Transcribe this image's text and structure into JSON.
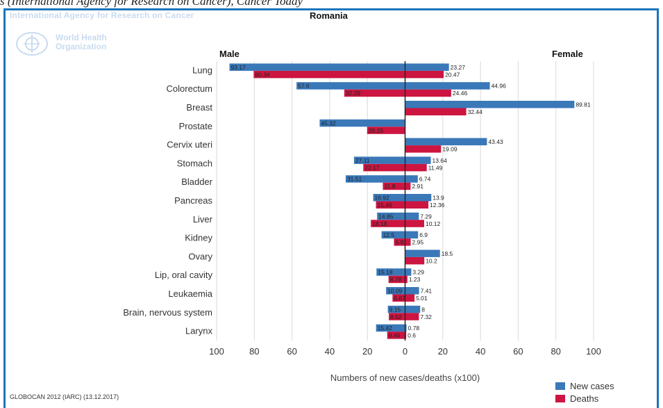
{
  "caption": "s (International Agency for Research on Cancer), Cancer Today",
  "header": {
    "iarc_banner": "International Agency for Research on Cancer",
    "who_text_line1": "World Health",
    "who_text_line2": "Organization"
  },
  "footer": {
    "source": "GLOBOCAN 2012 (IARC) (13.12.2017)"
  },
  "colors": {
    "new_cases": "#3a78b8",
    "deaths": "#cc1540",
    "frame": "#1a75bb",
    "grid": "#d9d9d9"
  },
  "chart_data": {
    "type": "bar",
    "title": "Romania",
    "left_label": "Male",
    "right_label": "Female",
    "xlabel": "Numbers of new cases/deaths (x100)",
    "xlim": [
      -100,
      100
    ],
    "xticks": [
      "100",
      "80",
      "60",
      "40",
      "20",
      "0",
      "20",
      "40",
      "60",
      "80",
      "100"
    ],
    "grid": "vertical",
    "legend_position": "bottom-right",
    "categories": [
      "Lung",
      "Colorectum",
      "Breast",
      "Prostate",
      "Cervix uteri",
      "Stomach",
      "Bladder",
      "Pancreas",
      "Liver",
      "Kidney",
      "Ovary",
      "Lip, oral cavity",
      "Leukaemia",
      "Brain, nervous system",
      "Larynx"
    ],
    "series": [
      {
        "name": "New cases",
        "sex": "Male",
        "values": [
          93.17,
          57.6,
          null,
          45.32,
          null,
          27.11,
          31.51,
          16.92,
          14.85,
          12.5,
          null,
          15.18,
          10.09,
          9.15,
          15.42
        ]
      },
      {
        "name": "Deaths",
        "sex": "Male",
        "values": [
          80.34,
          32.29,
          null,
          20.15,
          null,
          22.17,
          11.8,
          15.46,
          18.18,
          5.91,
          null,
          8.78,
          6.67,
          8.62,
          9.49
        ]
      },
      {
        "name": "New cases",
        "sex": "Female",
        "values": [
          23.27,
          44.96,
          89.81,
          null,
          43.43,
          13.64,
          6.74,
          13.9,
          7.29,
          6.9,
          18.5,
          3.29,
          7.41,
          8,
          0.78
        ]
      },
      {
        "name": "Deaths",
        "sex": "Female",
        "values": [
          20.47,
          24.46,
          32.44,
          null,
          19.09,
          11.49,
          2.91,
          12.36,
          10.12,
          2.95,
          10.2,
          1.23,
          5.01,
          7.32,
          0.6
        ]
      }
    ],
    "legend": [
      "New cases",
      "Deaths"
    ]
  }
}
